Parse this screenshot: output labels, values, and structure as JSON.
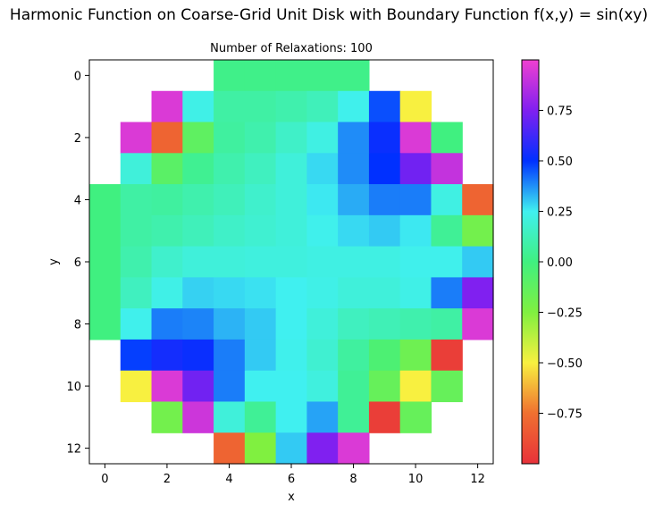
{
  "chart_data": {
    "type": "heatmap",
    "title": "Harmonic Function on Coarse-Grid Unit Disk with Boundary Function f(x,y) = sin(xy)",
    "subtitle": "Number of Relaxations: 100",
    "xlabel": "x",
    "ylabel": "y",
    "x_ticks": [
      "0",
      "2",
      "4",
      "6",
      "8",
      "10",
      "12"
    ],
    "y_ticks": [
      "0",
      "2",
      "4",
      "6",
      "8",
      "10",
      "12"
    ],
    "xlim": [
      -0.5,
      12.5
    ],
    "ylim": [
      12.5,
      -0.5
    ],
    "colormap": "gist_rainbow-like",
    "colorbar": {
      "range": [
        -1.0,
        1.0
      ],
      "ticks": [
        -0.75,
        -0.5,
        -0.25,
        0.0,
        0.25,
        0.5,
        0.75
      ],
      "tick_labels": [
        "−0.75",
        "−0.50",
        "−0.25",
        "0.00",
        "0.25",
        "0.50",
        "0.75"
      ],
      "stops": [
        {
          "v": -1.0,
          "color": "#e8323a"
        },
        {
          "v": -0.75,
          "color": "#f07030"
        },
        {
          "v": -0.5,
          "color": "#f8f040"
        },
        {
          "v": -0.25,
          "color": "#80f040"
        },
        {
          "v": 0.0,
          "color": "#40f080"
        },
        {
          "v": 0.25,
          "color": "#40f0f0"
        },
        {
          "v": 0.5,
          "color": "#0030ff"
        },
        {
          "v": 0.75,
          "color": "#8020f0"
        },
        {
          "v": 1.0,
          "color": "#f040d0"
        }
      ]
    },
    "grid": [
      [
        null,
        null,
        null,
        null,
        0.02,
        0.02,
        0.02,
        0.02,
        0.02,
        null,
        null,
        null,
        null
      ],
      [
        null,
        null,
        0.95,
        0.23,
        0.08,
        0.08,
        0.1,
        0.13,
        0.24,
        0.46,
        -0.5,
        null,
        null
      ],
      [
        null,
        0.95,
        -0.8,
        -0.12,
        0.07,
        0.1,
        0.16,
        0.22,
        0.38,
        0.52,
        0.95,
        0.0,
        null
      ],
      [
        null,
        0.2,
        -0.1,
        0.04,
        0.1,
        0.14,
        0.2,
        0.28,
        0.38,
        0.5,
        0.72,
        0.9,
        null
      ],
      [
        0.0,
        0.08,
        0.07,
        0.1,
        0.13,
        0.17,
        0.2,
        0.26,
        0.34,
        0.4,
        0.4,
        0.22,
        -0.8
      ],
      [
        0.0,
        0.08,
        0.1,
        0.13,
        0.16,
        0.18,
        0.2,
        0.24,
        0.28,
        0.3,
        0.26,
        0.05,
        -0.2
      ],
      [
        0.0,
        0.1,
        0.17,
        0.2,
        0.2,
        0.21,
        0.21,
        0.22,
        0.22,
        0.22,
        0.24,
        0.24,
        0.3
      ],
      [
        0.0,
        0.14,
        0.23,
        0.29,
        0.28,
        0.27,
        0.25,
        0.23,
        0.2,
        0.2,
        0.23,
        0.4,
        0.75
      ],
      [
        0.0,
        0.24,
        0.4,
        0.39,
        0.33,
        0.3,
        0.25,
        0.2,
        0.14,
        0.12,
        0.1,
        0.08,
        0.95
      ],
      [
        null,
        0.48,
        0.54,
        0.52,
        0.4,
        0.3,
        0.24,
        0.18,
        0.07,
        -0.05,
        -0.18,
        -0.95,
        null
      ],
      [
        null,
        -0.5,
        0.95,
        0.72,
        0.4,
        0.25,
        0.25,
        0.21,
        0.05,
        -0.15,
        -0.5,
        -0.15,
        null
      ],
      [
        null,
        null,
        -0.2,
        0.92,
        0.2,
        0.05,
        0.25,
        0.35,
        0.05,
        -0.95,
        -0.15,
        null,
        null
      ],
      [
        null,
        null,
        null,
        null,
        -0.8,
        -0.25,
        0.3,
        0.75,
        0.95,
        null,
        null,
        null,
        null
      ]
    ]
  }
}
